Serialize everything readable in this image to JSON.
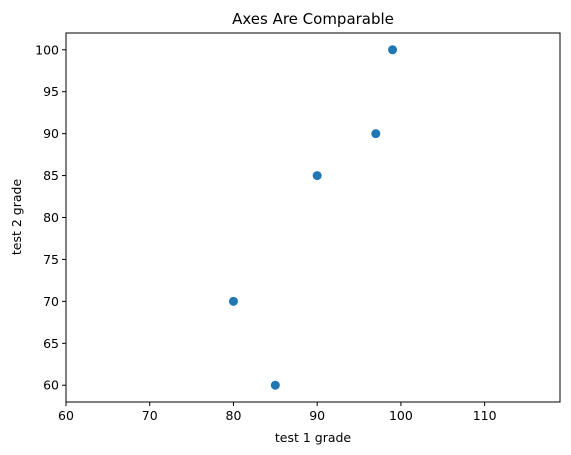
{
  "chart_data": {
    "type": "scatter",
    "title": "Axes Are Comparable",
    "xlabel": "test 1 grade",
    "ylabel": "test 2 grade",
    "xlim": [
      60,
      119
    ],
    "ylim": [
      58,
      102
    ],
    "xticks": [
      60,
      70,
      80,
      90,
      100,
      110
    ],
    "yticks": [
      60,
      65,
      70,
      75,
      80,
      85,
      90,
      95,
      100
    ],
    "grid": false,
    "marker_color": "#1f77b4",
    "series": [
      {
        "points": [
          {
            "x": 99,
            "y": 100
          },
          {
            "x": 97,
            "y": 90
          },
          {
            "x": 90,
            "y": 85
          },
          {
            "x": 80,
            "y": 70
          },
          {
            "x": 85,
            "y": 60
          }
        ]
      }
    ]
  }
}
